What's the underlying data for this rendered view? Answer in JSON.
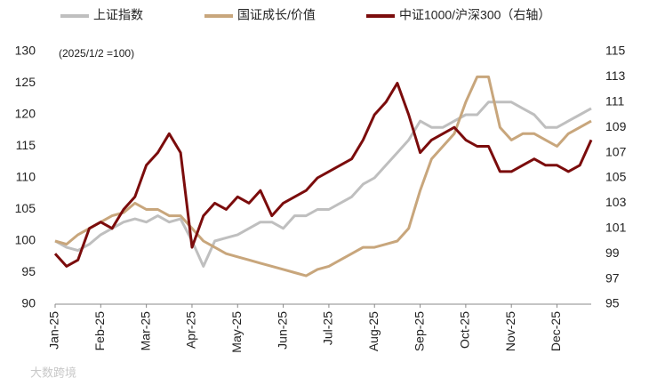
{
  "chart_data": {
    "type": "line",
    "subtitle": "(2025/1/2 =100)",
    "watermark": "大数跨境",
    "categories": [
      "Jan-25",
      null,
      null,
      null,
      "Feb-25",
      null,
      null,
      null,
      "Mar-25",
      null,
      null,
      null,
      "Apr-25",
      null,
      null,
      null,
      "May-25",
      null,
      null,
      null,
      "Jun-25",
      null,
      null,
      null,
      "Jul-25",
      null,
      null,
      null,
      "Aug-25",
      null,
      null,
      null,
      "Sep-25",
      null,
      null,
      null,
      "Oct-25",
      null,
      null,
      null,
      "Nov-25",
      null,
      null,
      null,
      "Dec-25",
      null,
      null,
      null
    ],
    "series": [
      {
        "name": "上证指数",
        "color": "#bfbfbf",
        "values": [
          100,
          99,
          98.5,
          99.5,
          101,
          102,
          103,
          103.5,
          103,
          104,
          103,
          103.5,
          100,
          96,
          100,
          100.5,
          101,
          102,
          103,
          103,
          102,
          104,
          104,
          105,
          105,
          106,
          107,
          109,
          110,
          112,
          114,
          116,
          119,
          118,
          118,
          119,
          120,
          120,
          122,
          122,
          122,
          121,
          120,
          118,
          118,
          119,
          120,
          121
        ]
      },
      {
        "name": "国证成长/价值",
        "color": "#c8a67c",
        "values": [
          100,
          99.5,
          101,
          102,
          103,
          104,
          104.5,
          106,
          105,
          105,
          104,
          104,
          102,
          100,
          99,
          98,
          97.5,
          97,
          96.5,
          96,
          95.5,
          95,
          94.5,
          95.5,
          96,
          97,
          98,
          99,
          99,
          99.5,
          100,
          102,
          108,
          113,
          115,
          117,
          122,
          126,
          126,
          118,
          116,
          117,
          117,
          116,
          115,
          117,
          118,
          119
        ]
      },
      {
        "name": "中证1000/沪深300（右轴）",
        "color": "#7b0c0c",
        "axis": "y2",
        "values": [
          99,
          98,
          98.5,
          101,
          101.5,
          101,
          102.5,
          103.5,
          106,
          107,
          108.5,
          107,
          99.5,
          102,
          103,
          102.5,
          103.5,
          103,
          104,
          102,
          103,
          103.5,
          104,
          105,
          105.5,
          106,
          106.5,
          108,
          110,
          111,
          112.5,
          110,
          107,
          108,
          108.5,
          109,
          108,
          107.5,
          107.5,
          105.5,
          105.5,
          106,
          106.5,
          106,
          106,
          105.5,
          106,
          108
        ]
      }
    ],
    "ylim": [
      90,
      130
    ],
    "yticks": [
      90,
      95,
      100,
      105,
      110,
      115,
      120,
      125,
      130
    ],
    "y2lim": [
      95,
      115
    ],
    "y2ticks": [
      95,
      97,
      99,
      101,
      103,
      105,
      107,
      109,
      111,
      113,
      115
    ],
    "grid": false
  }
}
